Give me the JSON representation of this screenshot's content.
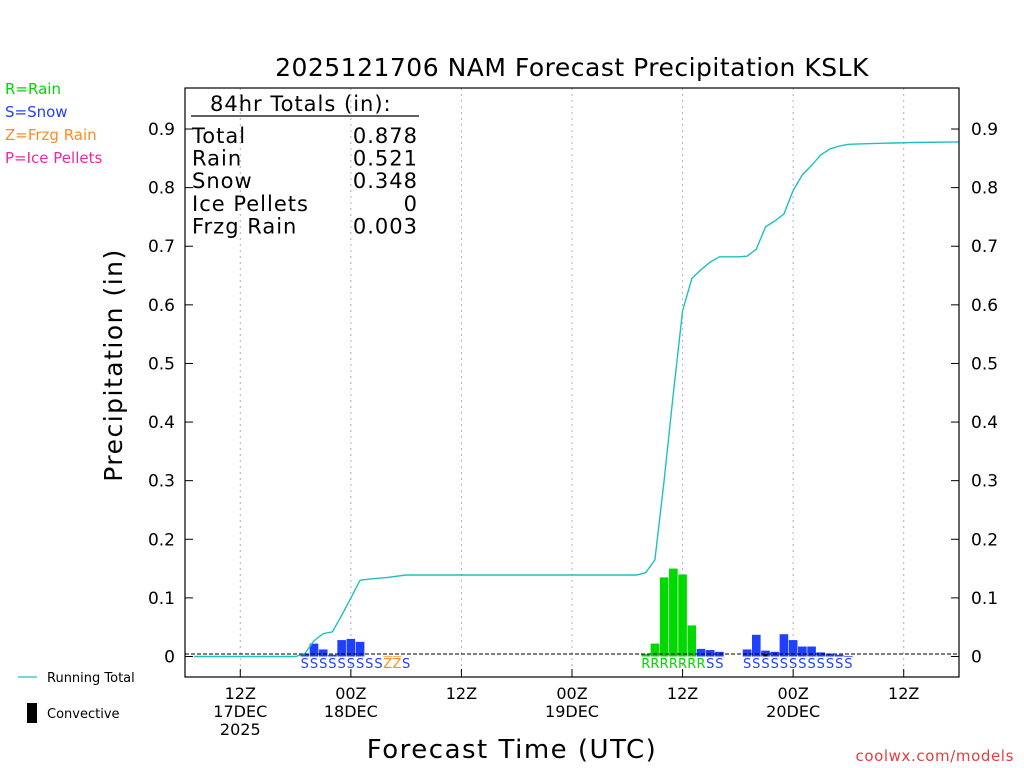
{
  "colors": {
    "rain": "#00d800",
    "snow": "#2040ff",
    "frzg": "#ff8c20",
    "ice": "#f0289a",
    "running_total": "#20c0c0",
    "grid": "#b0b0b0",
    "watermark": "#e0403c"
  },
  "legend": {
    "rain": "R=Rain",
    "snow": "S=Snow",
    "frzg": "Z=Frzg Rain",
    "ice": "P=Ice Pellets",
    "running_total": "Running Total",
    "convective": "Convective"
  },
  "totals_box": {
    "header": "84hr Totals (in):",
    "rows": [
      {
        "label": "Total",
        "value": "0.878"
      },
      {
        "label": "Rain",
        "value": "0.521"
      },
      {
        "label": "Snow",
        "value": "0.348"
      },
      {
        "label": "Ice Pellets",
        "value": "0"
      },
      {
        "label": "Frzg Rain",
        "value": "0.003"
      }
    ]
  },
  "watermark": "coolwx.com/models",
  "chart_data": {
    "type": "bar",
    "title": "2025121706 NAM Forecast Precipitation KSLK",
    "xlabel": "Forecast Time (UTC)",
    "ylabel": "Precipitation (in)",
    "xlim": [
      6,
      90
    ],
    "ylim": [
      -0.035,
      0.97
    ],
    "yticks": [
      0,
      0.1,
      0.2,
      0.3,
      0.4,
      0.5,
      0.6,
      0.7,
      0.8,
      0.9
    ],
    "xticks": [
      {
        "x": 12,
        "label": [
          "12Z",
          "17DEC",
          "2025"
        ]
      },
      {
        "x": 24,
        "label": [
          "00Z",
          "18DEC"
        ]
      },
      {
        "x": 36,
        "label": [
          "12Z"
        ]
      },
      {
        "x": 48,
        "label": [
          "00Z",
          "19DEC"
        ]
      },
      {
        "x": 60,
        "label": [
          "12Z"
        ]
      },
      {
        "x": 72,
        "label": [
          "00Z",
          "20DEC"
        ]
      },
      {
        "x": 84,
        "label": [
          "12Z"
        ]
      }
    ],
    "bars": [
      {
        "x": 19,
        "value": 0.005,
        "type": "snow"
      },
      {
        "x": 20,
        "value": 0.022,
        "type": "snow"
      },
      {
        "x": 21,
        "value": 0.012,
        "type": "snow"
      },
      {
        "x": 22,
        "value": 0.003,
        "type": "snow"
      },
      {
        "x": 23,
        "value": 0.028,
        "type": "snow"
      },
      {
        "x": 24,
        "value": 0.03,
        "type": "snow"
      },
      {
        "x": 25,
        "value": 0.025,
        "type": "snow"
      },
      {
        "x": 28,
        "value": 0.001,
        "type": "frzg"
      },
      {
        "x": 29,
        "value": 0.001,
        "type": "frzg"
      },
      {
        "x": 56,
        "value": 0.004,
        "type": "rain"
      },
      {
        "x": 57,
        "value": 0.022,
        "type": "rain"
      },
      {
        "x": 58,
        "value": 0.135,
        "type": "rain"
      },
      {
        "x": 59,
        "value": 0.15,
        "type": "rain"
      },
      {
        "x": 60,
        "value": 0.14,
        "type": "rain"
      },
      {
        "x": 61,
        "value": 0.053,
        "type": "rain"
      },
      {
        "x": 62,
        "value": 0.013,
        "type": "snow"
      },
      {
        "x": 63,
        "value": 0.011,
        "type": "snow"
      },
      {
        "x": 64,
        "value": 0.008,
        "type": "snow"
      },
      {
        "x": 67,
        "value": 0.012,
        "type": "snow"
      },
      {
        "x": 68,
        "value": 0.037,
        "type": "snow"
      },
      {
        "x": 69,
        "value": 0.01,
        "type": "snow"
      },
      {
        "x": 70,
        "value": 0.008,
        "type": "snow"
      },
      {
        "x": 71,
        "value": 0.038,
        "type": "snow"
      },
      {
        "x": 72,
        "value": 0.028,
        "type": "snow"
      },
      {
        "x": 73,
        "value": 0.017,
        "type": "snow"
      },
      {
        "x": 74,
        "value": 0.017,
        "type": "snow"
      },
      {
        "x": 75,
        "value": 0.007,
        "type": "snow"
      },
      {
        "x": 76,
        "value": 0.005,
        "type": "snow"
      },
      {
        "x": 77,
        "value": 0.003,
        "type": "snow"
      },
      {
        "x": 78,
        "value": 0.001,
        "type": "snow"
      }
    ],
    "convective": [
      {
        "x": 69,
        "value": 0.004
      }
    ],
    "running_total": {
      "x": [
        7,
        18,
        19,
        20,
        21,
        22,
        23,
        24,
        25,
        26,
        28,
        30,
        35,
        40,
        45,
        50,
        55,
        56,
        57,
        58,
        59,
        60,
        61,
        62,
        63,
        64,
        65,
        66,
        67,
        68,
        69,
        70,
        71,
        72,
        73,
        74,
        75,
        76,
        77,
        78,
        80,
        85,
        90
      ],
      "y": [
        0.0,
        0.0,
        0.005,
        0.027,
        0.039,
        0.042,
        0.07,
        0.1,
        0.13,
        0.132,
        0.135,
        0.139,
        0.139,
        0.139,
        0.139,
        0.139,
        0.139,
        0.143,
        0.165,
        0.3,
        0.45,
        0.59,
        0.645,
        0.66,
        0.673,
        0.682,
        0.682,
        0.682,
        0.683,
        0.695,
        0.733,
        0.743,
        0.755,
        0.795,
        0.822,
        0.838,
        0.856,
        0.866,
        0.871,
        0.874,
        0.875,
        0.877,
        0.878
      ]
    },
    "type_labels": [
      {
        "x": 19,
        "letter": "S"
      },
      {
        "x": 20,
        "letter": "S"
      },
      {
        "x": 21,
        "letter": "S"
      },
      {
        "x": 22,
        "letter": "S"
      },
      {
        "x": 23,
        "letter": "S"
      },
      {
        "x": 24,
        "letter": "S"
      },
      {
        "x": 25,
        "letter": "S"
      },
      {
        "x": 26,
        "letter": "S"
      },
      {
        "x": 27,
        "letter": "S"
      },
      {
        "x": 28,
        "letter": "Z"
      },
      {
        "x": 29,
        "letter": "Z"
      },
      {
        "x": 30,
        "letter": "S"
      },
      {
        "x": 56,
        "letter": "R"
      },
      {
        "x": 57,
        "letter": "R"
      },
      {
        "x": 58,
        "letter": "R"
      },
      {
        "x": 59,
        "letter": "R"
      },
      {
        "x": 60,
        "letter": "R"
      },
      {
        "x": 61,
        "letter": "R"
      },
      {
        "x": 62,
        "letter": "R"
      },
      {
        "x": 63,
        "letter": "S"
      },
      {
        "x": 64,
        "letter": "S"
      },
      {
        "x": 67,
        "letter": "S"
      },
      {
        "x": 68,
        "letter": "S"
      },
      {
        "x": 69,
        "letter": "S"
      },
      {
        "x": 70,
        "letter": "S"
      },
      {
        "x": 71,
        "letter": "S"
      },
      {
        "x": 72,
        "letter": "S"
      },
      {
        "x": 73,
        "letter": "S"
      },
      {
        "x": 74,
        "letter": "S"
      },
      {
        "x": 75,
        "letter": "S"
      },
      {
        "x": 76,
        "letter": "S"
      },
      {
        "x": 77,
        "letter": "S"
      },
      {
        "x": 78,
        "letter": "S"
      }
    ]
  }
}
